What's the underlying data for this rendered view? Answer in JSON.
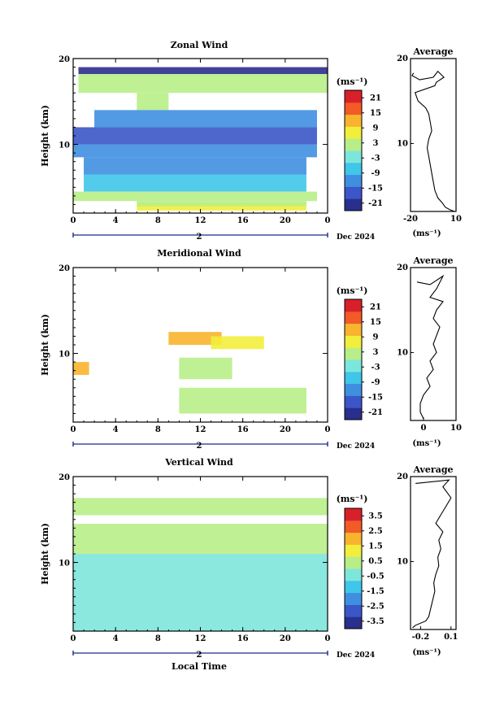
{
  "chart_data": [
    {
      "type": "heatmap",
      "title": "Zonal Wind",
      "ylabel": "Height (km)",
      "ylim": [
        2,
        20
      ],
      "xlim": [
        0,
        24
      ],
      "x_ticks": [
        "0",
        "4",
        "8",
        "12",
        "16",
        "20",
        "0"
      ],
      "y_ticks": [
        "10",
        "20"
      ],
      "date_labels": {
        "day": "2",
        "month": "Dec 2024"
      },
      "colorbar": {
        "unit": "(ms⁻¹)",
        "ticks": [
          "21",
          "15",
          "9",
          "3",
          "-3",
          "-9",
          "-15",
          "-21"
        ],
        "range": [
          -24,
          24
        ]
      },
      "layers": [
        {
          "y": [
            18.2,
            19.0
          ],
          "x": [
            0.5,
            24
          ],
          "value": -21
        },
        {
          "y": [
            16.0,
            18.2
          ],
          "x": [
            0.5,
            24
          ],
          "value": 0
        },
        {
          "y": [
            14.0,
            16.0
          ],
          "x": [
            6,
            9
          ],
          "value": 1
        },
        {
          "y": [
            12.0,
            14.0
          ],
          "x": [
            2,
            23
          ],
          "value": -12
        },
        {
          "y": [
            10.0,
            12.0
          ],
          "x": [
            0,
            23
          ],
          "value": -18
        },
        {
          "y": [
            8.5,
            10.0
          ],
          "x": [
            0,
            23
          ],
          "value": -14
        },
        {
          "y": [
            6.5,
            8.5
          ],
          "x": [
            1,
            22
          ],
          "value": -10
        },
        {
          "y": [
            4.5,
            6.5
          ],
          "x": [
            1,
            22
          ],
          "value": -6
        },
        {
          "y": [
            3.4,
            4.5
          ],
          "x": [
            0,
            23
          ],
          "value": 0
        },
        {
          "y": [
            2.3,
            3.3
          ],
          "x": [
            6,
            22
          ],
          "value": 7
        },
        {
          "y": [
            2.8,
            3.4
          ],
          "x": [
            6,
            22
          ],
          "value": 2
        }
      ],
      "average": {
        "title": "Average",
        "xlabel": "(ms⁻¹)",
        "x_ticks": [
          "-20",
          "10"
        ],
        "xlim": [
          -20,
          10
        ],
        "y_ticks": [
          "10",
          "20"
        ],
        "profile": [
          [
            -18,
            18.3
          ],
          [
            -19,
            18.0
          ],
          [
            -14,
            17.5
          ],
          [
            -5,
            17.8
          ],
          [
            -2,
            18.5
          ],
          [
            2,
            17.8
          ],
          [
            -3,
            17.2
          ],
          [
            -4,
            16.8
          ],
          [
            -17,
            16.0
          ],
          [
            -15,
            15.0
          ],
          [
            -10,
            14.2
          ],
          [
            -8,
            13.5
          ],
          [
            -7,
            12.5
          ],
          [
            -6,
            11.5
          ],
          [
            -8,
            10.5
          ],
          [
            -9,
            9.5
          ],
          [
            -8,
            8.5
          ],
          [
            -7,
            7.5
          ],
          [
            -6,
            6.5
          ],
          [
            -5,
            5.5
          ],
          [
            -4,
            4.5
          ],
          [
            -2,
            3.6
          ],
          [
            1,
            3.0
          ],
          [
            3,
            2.5
          ],
          [
            6,
            2.2
          ],
          [
            9,
            2.0
          ]
        ]
      }
    },
    {
      "type": "heatmap",
      "title": "Meridional Wind",
      "ylabel": "Height (km)",
      "ylim": [
        2,
        20
      ],
      "xlim": [
        0,
        24
      ],
      "x_ticks": [
        "0",
        "4",
        "8",
        "12",
        "16",
        "20",
        "0"
      ],
      "y_ticks": [
        "10",
        "20"
      ],
      "date_labels": {
        "day": "2",
        "month": "Dec 2024"
      },
      "colorbar": {
        "unit": "(ms⁻¹)",
        "ticks": [
          "21",
          "15",
          "9",
          "3",
          "-3",
          "-9",
          "-15",
          "-21"
        ],
        "range": [
          -24,
          24
        ]
      },
      "layers": [
        {
          "y": [
            11.0,
            12.5
          ],
          "x": [
            9,
            14
          ],
          "value": 10
        },
        {
          "y": [
            10.5,
            12.0
          ],
          "x": [
            13,
            18
          ],
          "value": 6
        },
        {
          "y": [
            7.5,
            9.0
          ],
          "x": [
            0,
            1.5
          ],
          "value": 12
        },
        {
          "y": [
            7.0,
            9.5
          ],
          "x": [
            10,
            15
          ],
          "value": 2
        },
        {
          "y": [
            3.0,
            6.0
          ],
          "x": [
            10,
            22
          ],
          "value": 1
        }
      ],
      "average": {
        "title": "Average",
        "xlabel": "(ms⁻¹)",
        "x_ticks": [
          "0",
          "10"
        ],
        "xlim": [
          -4,
          10
        ],
        "y_ticks": [
          "10",
          "20"
        ],
        "profile": [
          [
            -2,
            18.3
          ],
          [
            2,
            18.0
          ],
          [
            6,
            19.0
          ],
          [
            4,
            17.5
          ],
          [
            2,
            16.5
          ],
          [
            6,
            16.0
          ],
          [
            4,
            15.0
          ],
          [
            3,
            14.0
          ],
          [
            5,
            13.0
          ],
          [
            4,
            12.0
          ],
          [
            3,
            11.0
          ],
          [
            4,
            10.0
          ],
          [
            2,
            9.0
          ],
          [
            3,
            8.0
          ],
          [
            1,
            7.0
          ],
          [
            2,
            6.0
          ],
          [
            0,
            5.0
          ],
          [
            -1,
            4.0
          ],
          [
            -1,
            3.0
          ],
          [
            0,
            2.2
          ]
        ]
      }
    },
    {
      "type": "heatmap",
      "title": "Vertical Wind",
      "ylabel": "Height (km)",
      "xlabel": "Local Time",
      "ylim": [
        2,
        20
      ],
      "xlim": [
        0,
        24
      ],
      "x_ticks": [
        "0",
        "4",
        "8",
        "12",
        "16",
        "20",
        "0"
      ],
      "y_ticks": [
        "10",
        "20"
      ],
      "date_labels": {
        "day": "2",
        "month": "Dec 2024"
      },
      "colorbar": {
        "unit": "(ms⁻¹)",
        "ticks": [
          "3.5",
          "2.5",
          "1.5",
          "0.5",
          "-0.5",
          "-1.5",
          "-2.5",
          "-3.5"
        ],
        "range": [
          -4,
          4
        ]
      },
      "layers": [
        {
          "y": [
            15.5,
            17.5
          ],
          "x": [
            0,
            24
          ],
          "value": 0.2
        },
        {
          "y": [
            11.0,
            14.5
          ],
          "x": [
            0,
            24
          ],
          "value": 0.3
        },
        {
          "y": [
            2.0,
            11.0
          ],
          "x": [
            0,
            24
          ],
          "value": -0.2
        }
      ],
      "average": {
        "title": "Average",
        "xlabel": "(ms⁻¹)",
        "x_ticks": [
          "-0.2",
          "0.1"
        ],
        "xlim": [
          -0.3,
          0.15
        ],
        "y_ticks": [
          "10",
          "20"
        ],
        "profile": [
          [
            -0.25,
            19.2
          ],
          [
            0.08,
            19.6
          ],
          [
            0.02,
            18.8
          ],
          [
            0.1,
            17.5
          ],
          [
            0.05,
            16.5
          ],
          [
            0.0,
            15.5
          ],
          [
            -0.05,
            14.5
          ],
          [
            0.02,
            13.5
          ],
          [
            -0.02,
            12.5
          ],
          [
            0.0,
            11.5
          ],
          [
            -0.03,
            10.5
          ],
          [
            -0.02,
            9.5
          ],
          [
            -0.05,
            8.5
          ],
          [
            -0.07,
            7.5
          ],
          [
            -0.06,
            6.5
          ],
          [
            -0.08,
            5.5
          ],
          [
            -0.1,
            4.5
          ],
          [
            -0.12,
            3.5
          ],
          [
            -0.15,
            3.0
          ],
          [
            -0.25,
            2.5
          ],
          [
            -0.28,
            2.2
          ]
        ]
      }
    }
  ]
}
